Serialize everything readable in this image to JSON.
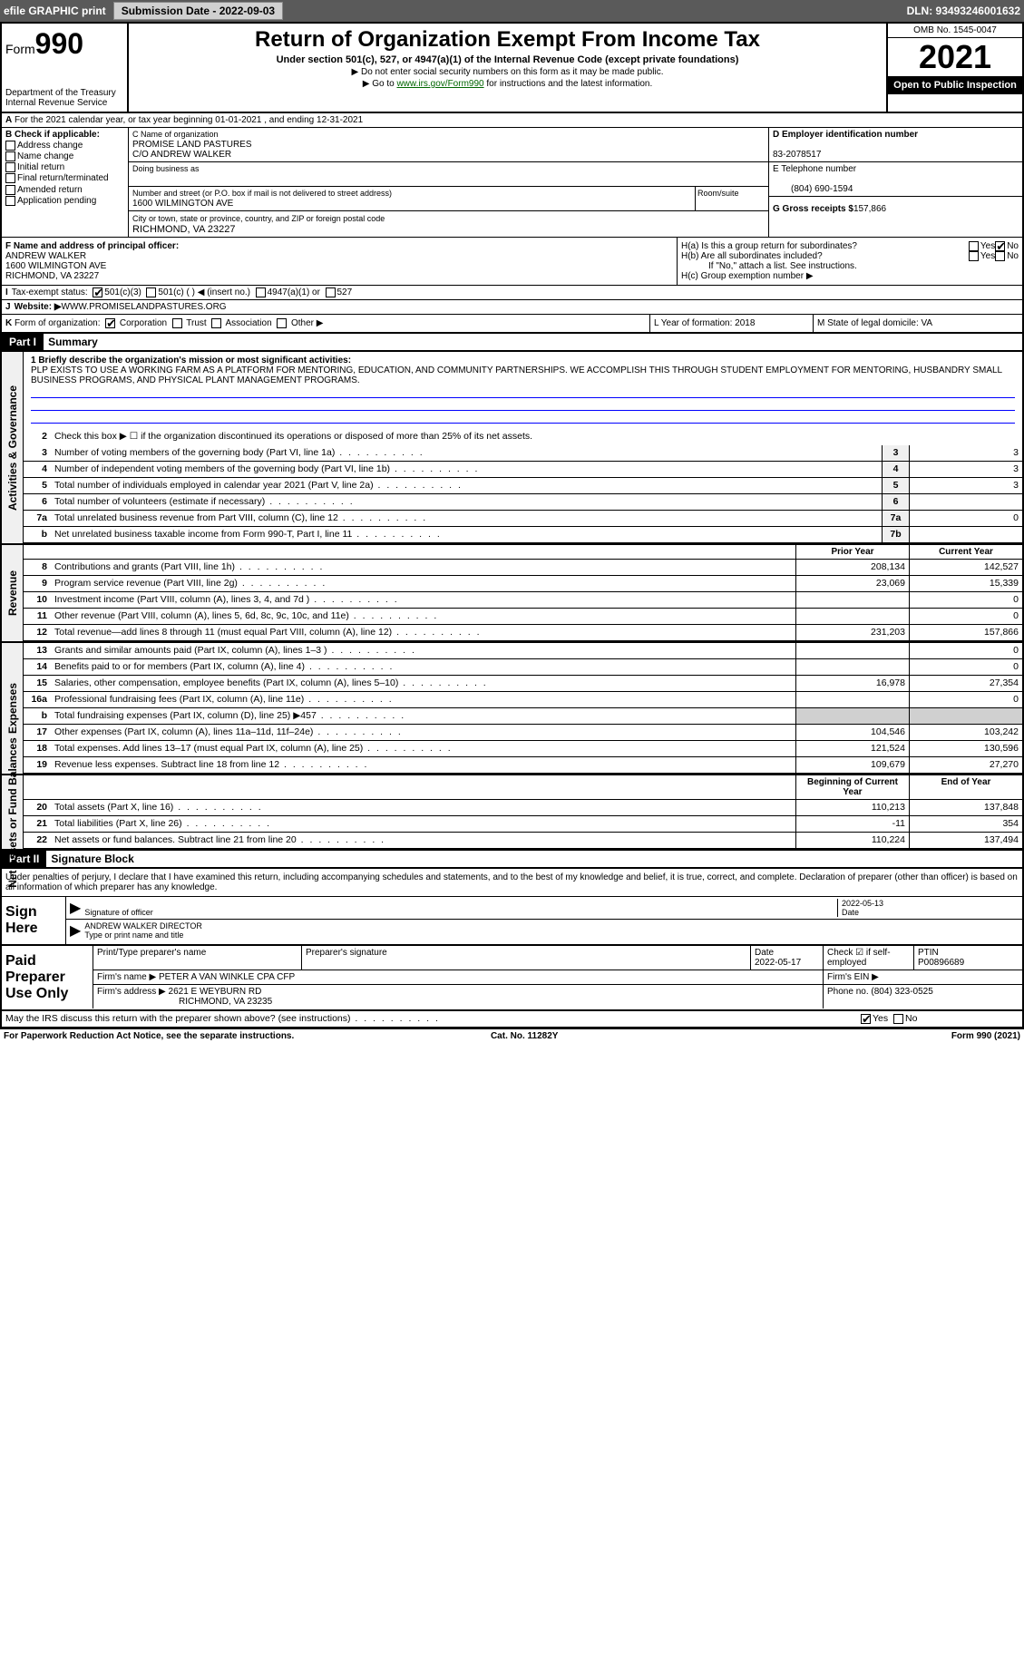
{
  "topbar": {
    "efile": "efile GRAPHIC print",
    "submission": "Submission Date - 2022-09-03",
    "dln": "DLN: 93493246001632"
  },
  "header": {
    "form_word": "Form",
    "form_num": "990",
    "title": "Return of Organization Exempt From Income Tax",
    "subtitle": "Under section 501(c), 527, or 4947(a)(1) of the Internal Revenue Code (except private foundations)",
    "note1": "▶ Do not enter social security numbers on this form as it may be made public.",
    "note2_pre": "▶ Go to ",
    "note2_link": "www.irs.gov/Form990",
    "note2_post": " for instructions and the latest information.",
    "dept": "Department of the Treasury",
    "irs": "Internal Revenue Service",
    "omb": "OMB No. 1545-0047",
    "year": "2021",
    "open": "Open to Public Inspection"
  },
  "period": {
    "label_a": "A",
    "text": "For the 2021 calendar year, or tax year beginning 01-01-2021   , and ending 12-31-2021"
  },
  "colB": {
    "label": "B Check if applicable:",
    "opts": [
      "Address change",
      "Name change",
      "Initial return",
      "Final return/terminated",
      "Amended return",
      "Application pending"
    ]
  },
  "colC": {
    "name_label": "C Name of organization",
    "name": "PROMISE LAND PASTURES",
    "co": "C/O ANDREW WALKER",
    "dba_label": "Doing business as",
    "addr_label": "Number and street (or P.O. box if mail is not delivered to street address)",
    "suite_label": "Room/suite",
    "addr": "1600 WILMINGTON AVE",
    "city_label": "City or town, state or province, country, and ZIP or foreign postal code",
    "city": "RICHMOND, VA  23227"
  },
  "colD": {
    "ein_label": "D Employer identification number",
    "ein": "83-2078517",
    "phone_label": "E Telephone number",
    "phone": "(804) 690-1594",
    "gross_label": "G Gross receipts $",
    "gross": "157,866"
  },
  "sectionF": {
    "label": "F  Name and address of principal officer:",
    "name": "ANDREW WALKER",
    "addr1": "1600 WILMINGTON AVE",
    "addr2": "RICHMOND, VA  23227"
  },
  "sectionH": {
    "a": "H(a)  Is this a group return for subordinates?",
    "b": "H(b)  Are all subordinates included?",
    "b_note": "If \"No,\" attach a list. See instructions.",
    "c": "H(c)  Group exemption number ▶",
    "yes": "Yes",
    "no": "No"
  },
  "rowI": {
    "label": "I",
    "text": "Tax-exempt status:",
    "opts": [
      "501(c)(3)",
      "501(c) (   ) ◀ (insert no.)",
      "4947(a)(1) or",
      "527"
    ]
  },
  "rowJ": {
    "label": "J",
    "text": "Website: ▶",
    "val": " WWW.PROMISELANDPASTURES.ORG"
  },
  "rowK": {
    "label": "K",
    "text": "Form of organization:",
    "opts": [
      "Corporation",
      "Trust",
      "Association",
      "Other ▶"
    ]
  },
  "rowL": {
    "text": "L Year of formation: 2018"
  },
  "rowM": {
    "text": "M State of legal domicile: VA"
  },
  "part1": {
    "header": "Part I",
    "title": "Summary",
    "q1": "1  Briefly describe the organization's mission or most significant activities:",
    "mission": "PLP EXISTS TO USE A WORKING FARM AS A PLATFORM FOR MENTORING, EDUCATION, AND COMMUNITY PARTNERSHIPS. WE ACCOMPLISH THIS THROUGH STUDENT EMPLOYMENT FOR MENTORING, HUSBANDRY SMALL BUSINESS PROGRAMS, AND PHYSICAL PLANT MANAGEMENT PROGRAMS.",
    "q2": "Check this box ▶ ☐  if the organization discontinued its operations or disposed of more than 25% of its net assets."
  },
  "sideLabels": {
    "gov": "Activities & Governance",
    "rev": "Revenue",
    "exp": "Expenses",
    "net": "Net Assets or Fund Balances"
  },
  "lines_gov": [
    {
      "n": "3",
      "d": "Number of voting members of the governing body (Part VI, line 1a)",
      "box": "3",
      "v": "3"
    },
    {
      "n": "4",
      "d": "Number of independent voting members of the governing body (Part VI, line 1b)",
      "box": "4",
      "v": "3"
    },
    {
      "n": "5",
      "d": "Total number of individuals employed in calendar year 2021 (Part V, line 2a)",
      "box": "5",
      "v": "3"
    },
    {
      "n": "6",
      "d": "Total number of volunteers (estimate if necessary)",
      "box": "6",
      "v": ""
    },
    {
      "n": "7a",
      "d": "Total unrelated business revenue from Part VIII, column (C), line 12",
      "box": "7a",
      "v": "0"
    },
    {
      "n": "b",
      "d": "Net unrelated business taxable income from Form 990-T, Part I, line 11",
      "box": "7b",
      "v": ""
    }
  ],
  "col_headers": {
    "prior": "Prior Year",
    "current": "Current Year"
  },
  "lines_rev": [
    {
      "n": "8",
      "d": "Contributions and grants (Part VIII, line 1h)",
      "p": "208,134",
      "c": "142,527"
    },
    {
      "n": "9",
      "d": "Program service revenue (Part VIII, line 2g)",
      "p": "23,069",
      "c": "15,339"
    },
    {
      "n": "10",
      "d": "Investment income (Part VIII, column (A), lines 3, 4, and 7d )",
      "p": "",
      "c": "0"
    },
    {
      "n": "11",
      "d": "Other revenue (Part VIII, column (A), lines 5, 6d, 8c, 9c, 10c, and 11e)",
      "p": "",
      "c": "0"
    },
    {
      "n": "12",
      "d": "Total revenue—add lines 8 through 11 (must equal Part VIII, column (A), line 12)",
      "p": "231,203",
      "c": "157,866"
    }
  ],
  "lines_exp": [
    {
      "n": "13",
      "d": "Grants and similar amounts paid (Part IX, column (A), lines 1–3 )",
      "p": "",
      "c": "0"
    },
    {
      "n": "14",
      "d": "Benefits paid to or for members (Part IX, column (A), line 4)",
      "p": "",
      "c": "0"
    },
    {
      "n": "15",
      "d": "Salaries, other compensation, employee benefits (Part IX, column (A), lines 5–10)",
      "p": "16,978",
      "c": "27,354"
    },
    {
      "n": "16a",
      "d": "Professional fundraising fees (Part IX, column (A), line 11e)",
      "p": "",
      "c": "0"
    },
    {
      "n": "b",
      "d": "Total fundraising expenses (Part IX, column (D), line 25) ▶457",
      "p": "shade",
      "c": "shade"
    },
    {
      "n": "17",
      "d": "Other expenses (Part IX, column (A), lines 11a–11d, 11f–24e)",
      "p": "104,546",
      "c": "103,242"
    },
    {
      "n": "18",
      "d": "Total expenses. Add lines 13–17 (must equal Part IX, column (A), line 25)",
      "p": "121,524",
      "c": "130,596"
    },
    {
      "n": "19",
      "d": "Revenue less expenses. Subtract line 18 from line 12",
      "p": "109,679",
      "c": "27,270"
    }
  ],
  "col_headers2": {
    "beg": "Beginning of Current Year",
    "end": "End of Year"
  },
  "lines_net": [
    {
      "n": "20",
      "d": "Total assets (Part X, line 16)",
      "p": "110,213",
      "c": "137,848"
    },
    {
      "n": "21",
      "d": "Total liabilities (Part X, line 26)",
      "p": "-11",
      "c": "354"
    },
    {
      "n": "22",
      "d": "Net assets or fund balances. Subtract line 21 from line 20",
      "p": "110,224",
      "c": "137,494"
    }
  ],
  "part2": {
    "header": "Part II",
    "title": "Signature Block",
    "decl": "Under penalties of perjury, I declare that I have examined this return, including accompanying schedules and statements, and to the best of my knowledge and belief, it is true, correct, and complete. Declaration of preparer (other than officer) is based on all information of which preparer has any knowledge."
  },
  "sign": {
    "label": "Sign Here",
    "sig_label": "Signature of officer",
    "date_label": "Date",
    "date": "2022-05-13",
    "name": "ANDREW WALKER  DIRECTOR",
    "name_label": "Type or print name and title"
  },
  "prep": {
    "label": "Paid Preparer Use Only",
    "h1": "Print/Type preparer's name",
    "h2": "Preparer's signature",
    "h3": "Date",
    "date": "2022-05-17",
    "h4": "Check ☑ if self-employed",
    "h5": "PTIN",
    "ptin": "P00896689",
    "firm_label": "Firm's name    ▶",
    "firm": "PETER A VAN WINKLE CPA CFP",
    "ein_label": "Firm's EIN ▶",
    "addr_label": "Firm's address ▶",
    "addr1": "2621 E WEYBURN RD",
    "addr2": "RICHMOND, VA  23235",
    "phone_label": "Phone no.",
    "phone": "(804) 323-0525"
  },
  "discuss": {
    "q": "May the IRS discuss this return with the preparer shown above? (see instructions)",
    "yes": "Yes",
    "no": "No"
  },
  "footer": {
    "left": "For Paperwork Reduction Act Notice, see the separate instructions.",
    "mid": "Cat. No. 11282Y",
    "right": "Form 990 (2021)"
  }
}
